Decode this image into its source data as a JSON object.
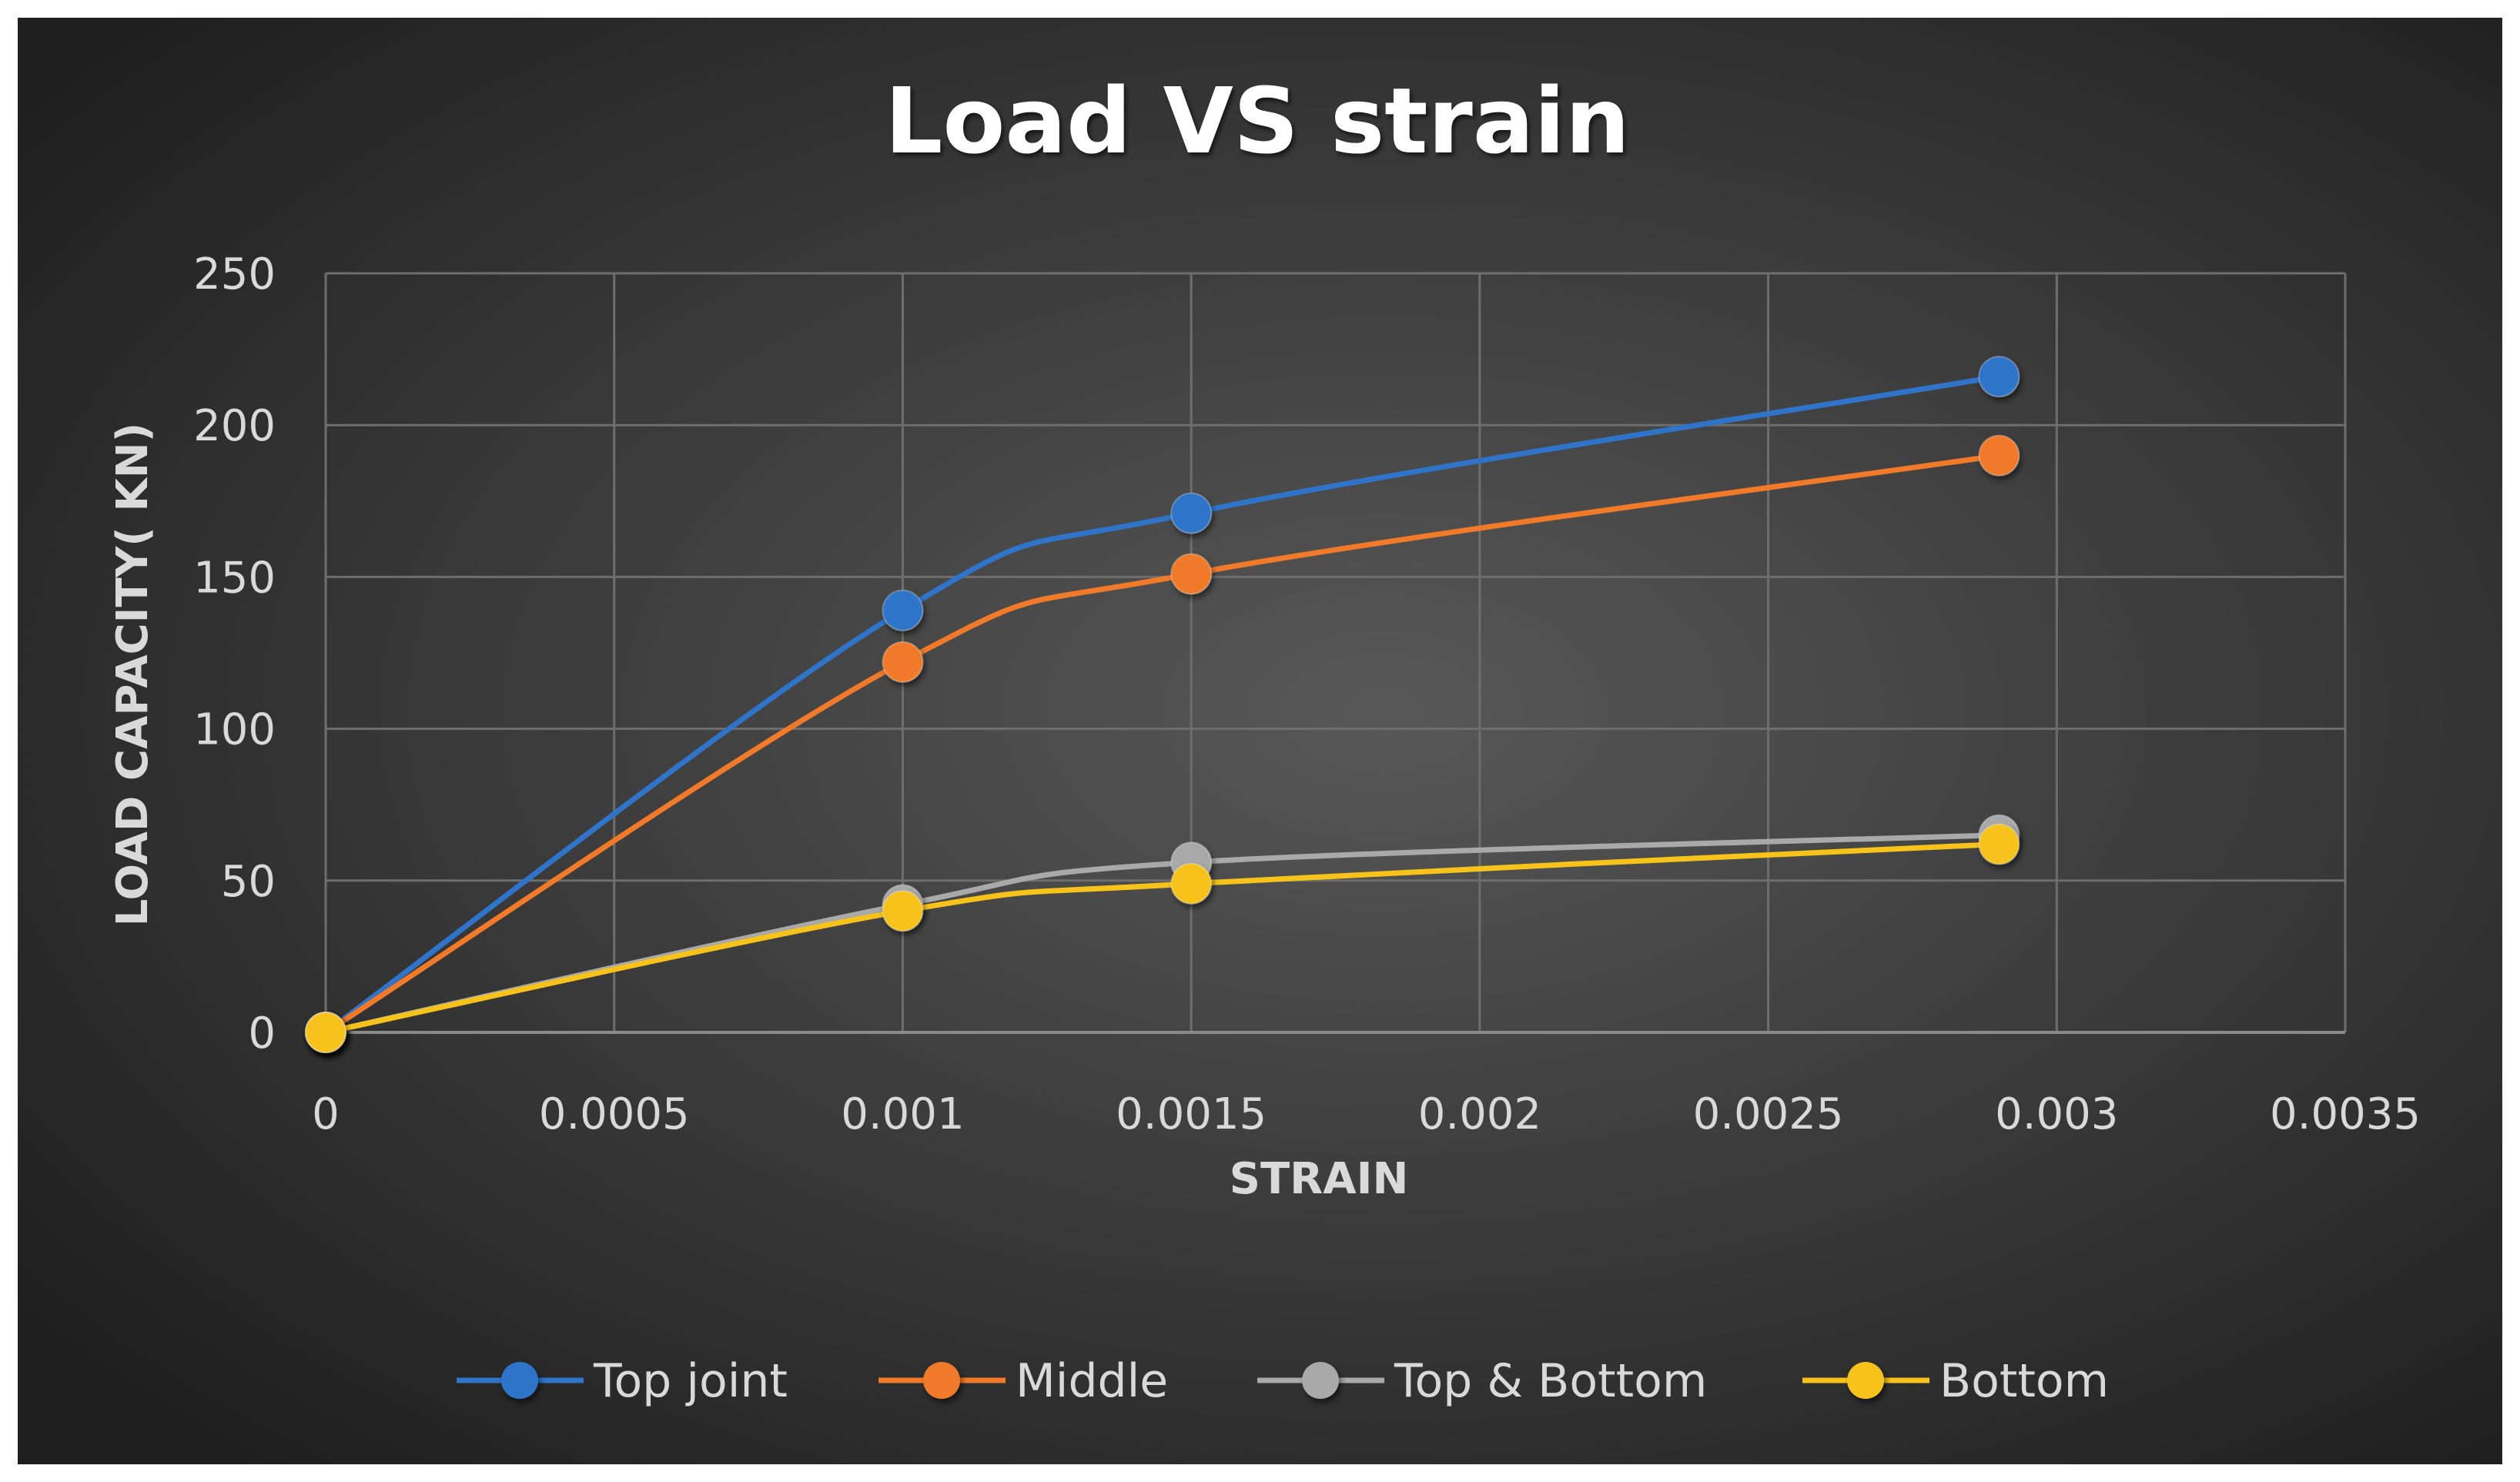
{
  "chart_data": {
    "type": "line",
    "title": "Load VS strain",
    "xlabel": "STRAIN",
    "ylabel": "LOAD CAPACITY( KN)",
    "xlim": [
      0,
      0.0035
    ],
    "ylim": [
      0,
      250
    ],
    "x_ticks": [
      "0",
      "0.0005",
      "0.001",
      "0.0015",
      "0.002",
      "0.0025",
      "0.003",
      "0.0035"
    ],
    "y_ticks": [
      "0",
      "50",
      "100",
      "150",
      "200",
      "250"
    ],
    "x": [
      0,
      0.001,
      0.0015,
      0.0029
    ],
    "grid": true,
    "legend_position": "bottom",
    "series": [
      {
        "name": "Top joint",
        "values": [
          0,
          139,
          171,
          216
        ],
        "color": "#2f74c9"
      },
      {
        "name": "Middle",
        "values": [
          0,
          122,
          151,
          190
        ],
        "color": "#f07a2a"
      },
      {
        "name": "Top & Bottom",
        "values": [
          0,
          42,
          56,
          65
        ],
        "color": "#a9a9a9"
      },
      {
        "name": "Bottom",
        "values": [
          0,
          40,
          49,
          62
        ],
        "color": "#f7c21a"
      }
    ]
  },
  "colors": {
    "background_center": "#575757",
    "background_edge": "#1f1f1f",
    "gridline": "#6e6e6e",
    "text": "#d9d9d9"
  }
}
